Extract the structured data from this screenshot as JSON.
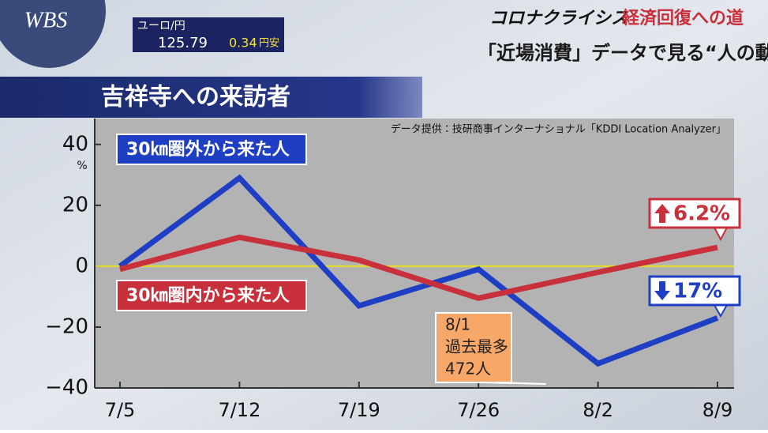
{
  "header": {
    "logo": "WBS",
    "ticker": {
      "pair": "ユーロ/円",
      "rate": "125.79",
      "change": "0.34",
      "direction": "円安"
    },
    "series_title": "コロナクライシス",
    "series_subtitle": "経済回復への道",
    "segment": "「近場消費」データで見る“人の動き”"
  },
  "chart_data": {
    "type": "line",
    "title": "吉祥寺への来訪者",
    "source": "データ提供：技研商事インターナショナル「KDDI Location Analyzer」",
    "y_unit": "%",
    "categories": [
      "7/5",
      "7/12",
      "7/19",
      "7/26",
      "8/2",
      "8/9"
    ],
    "series": [
      {
        "name": "30㎞圏外から来た人",
        "color": "#1e3fc4",
        "values": [
          0,
          29,
          -13,
          -1,
          -32,
          -17
        ],
        "value_labels": [
          null,
          null,
          null,
          null,
          null,
          "17%"
        ],
        "label_direction": "down"
      },
      {
        "name": "30㎞圏内から来た人",
        "color": "#c8303c",
        "values": [
          -1,
          9.5,
          2,
          -10.5,
          -2,
          6.2
        ],
        "value_labels": [
          null,
          null,
          null,
          null,
          null,
          "6.2%"
        ],
        "label_direction": "up"
      }
    ],
    "ylim": [
      -40,
      48
    ],
    "yticks": [
      {
        "value": 40,
        "label": "40"
      },
      {
        "value": 20,
        "label": "20"
      },
      0,
      {
        "value": -20,
        "label": "−20"
      },
      {
        "value": -40,
        "label": "−40"
      }
    ],
    "zero_line_color": "#e8e020",
    "annotations": [
      {
        "lines": [
          "8/1",
          "過去最多",
          "472人"
        ],
        "category": 4
      }
    ]
  }
}
